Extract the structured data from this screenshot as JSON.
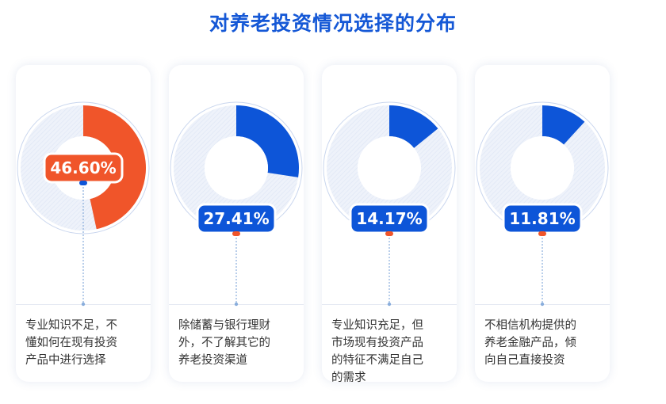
{
  "title": "对养老投资情况选择的分布",
  "colors": {
    "title": "#1558d6",
    "highlight": "#f0552a",
    "primary": "#0d55d8",
    "track": "#e9eef8",
    "guide": "#8aaedc"
  },
  "chart_data": {
    "type": "pie",
    "title": "对养老投资情况选择的分布",
    "unit": "%",
    "categories": [
      "专业知识不足，不懂如何在现有投资产品中进行选择",
      "除储蓄与银行理财外，不了解其它的养老投资渠道",
      "专业知识充足，但市场现有投资产品的特征不满足自己的需求",
      "不相信机构提供的养老金融产品，倾向自己直接投资"
    ],
    "values": [
      46.6,
      27.41,
      14.17,
      11.81
    ],
    "highlight_index": 0
  },
  "cards": [
    {
      "label": "46.60%",
      "desc": "专业知识不足，不\n懂如何在现有投资\n产品中进行选择"
    },
    {
      "label": "27.41%",
      "desc": "除储蓄与银行理财\n外，不了解其它的\n养老投资渠道"
    },
    {
      "label": "14.17%",
      "desc": "专业知识充足，但\n市场现有投资产品\n的特征不满足自己\n的需求"
    },
    {
      "label": "11.81%",
      "desc": "不相信机构提供的\n养老金融产品，倾\n向自己直接投资"
    }
  ]
}
